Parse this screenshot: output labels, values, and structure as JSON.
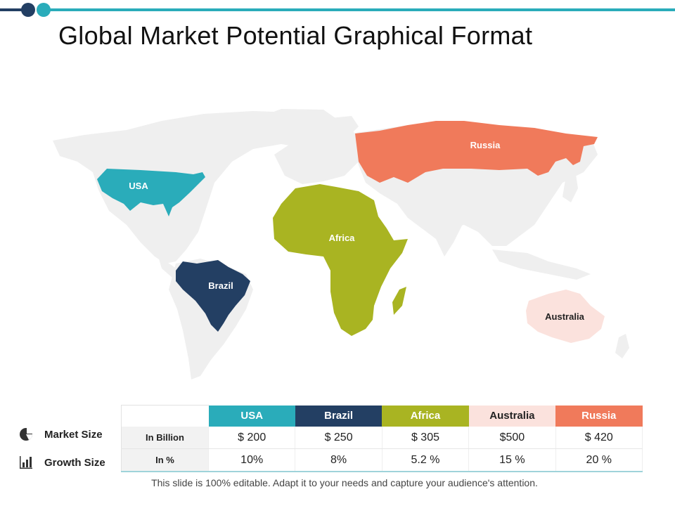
{
  "slide": {
    "title": "Global Market Potential Graphical Format",
    "footer": "This slide is 100% editable. Adapt it to your needs and capture your audience's attention."
  },
  "map": {
    "regions": [
      {
        "key": "usa",
        "label": "USA",
        "color": "#2aacba",
        "label_color": "#ffffff"
      },
      {
        "key": "russia",
        "label": "Russia",
        "color": "#f07a5b",
        "label_color": "#ffffff"
      },
      {
        "key": "africa",
        "label": "Africa",
        "color": "#a9b422",
        "label_color": "#ffffff"
      },
      {
        "key": "brazil",
        "label": "Brazil",
        "color": "#233f63",
        "label_color": "#ffffff"
      },
      {
        "key": "australia",
        "label": "Australia",
        "color": "#fbe2dd",
        "label_color": "#222222"
      }
    ],
    "base_color": "#efefef"
  },
  "legend": [
    {
      "label": "Market Size",
      "icon": "pie-chart-icon"
    },
    {
      "label": "Growth Size",
      "icon": "bar-chart-icon"
    }
  ],
  "table": {
    "columns": [
      "USA",
      "Brazil",
      "Africa",
      "Australia",
      "Russia"
    ],
    "rows": [
      {
        "label": "In Billion",
        "values": [
          "$ 200",
          "$ 250",
          "$ 305",
          "$500",
          "$ 420"
        ]
      },
      {
        "label": "In %",
        "values": [
          "10%",
          "8%",
          "5.2 %",
          "15 %",
          "20 %"
        ]
      }
    ]
  }
}
